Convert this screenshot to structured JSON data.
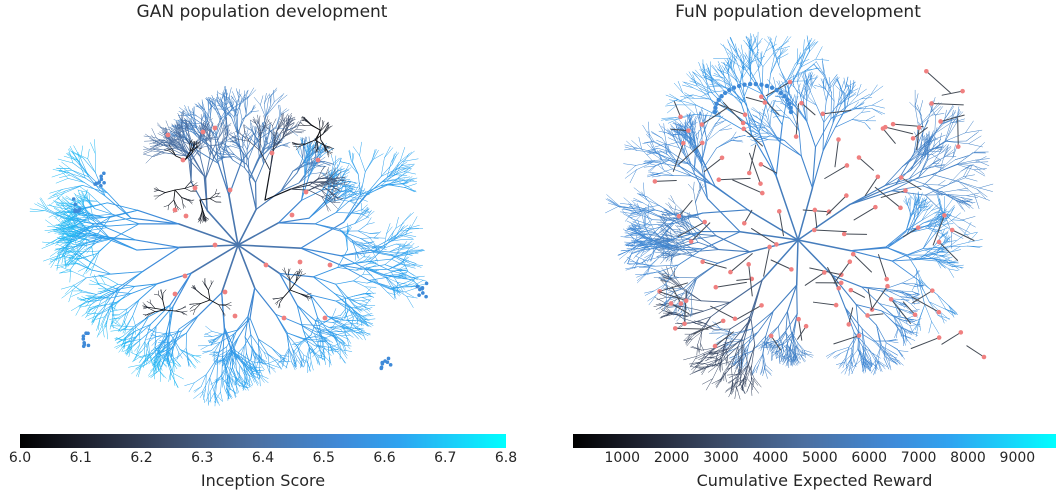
{
  "chart_data": [
    {
      "type": "scatter",
      "title": "GAN population development",
      "colorbar": {
        "label": "Inception Score",
        "ticks": [
          "6.0",
          "6.1",
          "6.2",
          "6.3",
          "6.4",
          "6.5",
          "6.6",
          "6.7",
          "6.8"
        ],
        "range": [
          6.0,
          6.8
        ],
        "colormap": [
          "#000000",
          "#3b4a66",
          "#4c6fa0",
          "#3f8ad8",
          "#00ffff"
        ]
      },
      "marker_color": "#f08080"
    },
    {
      "type": "scatter",
      "title": "FuN population development",
      "colorbar": {
        "label": "Cumulative Expected Reward",
        "ticks": [
          "1000",
          "2000",
          "3000",
          "4000",
          "5000",
          "6000",
          "7000",
          "8000",
          "9000"
        ],
        "range": [
          0,
          9800
        ],
        "colormap": [
          "#000000",
          "#3b4a66",
          "#4c6fa0",
          "#3f8ad8",
          "#00ffff"
        ]
      },
      "marker_color": "#f08080"
    }
  ]
}
